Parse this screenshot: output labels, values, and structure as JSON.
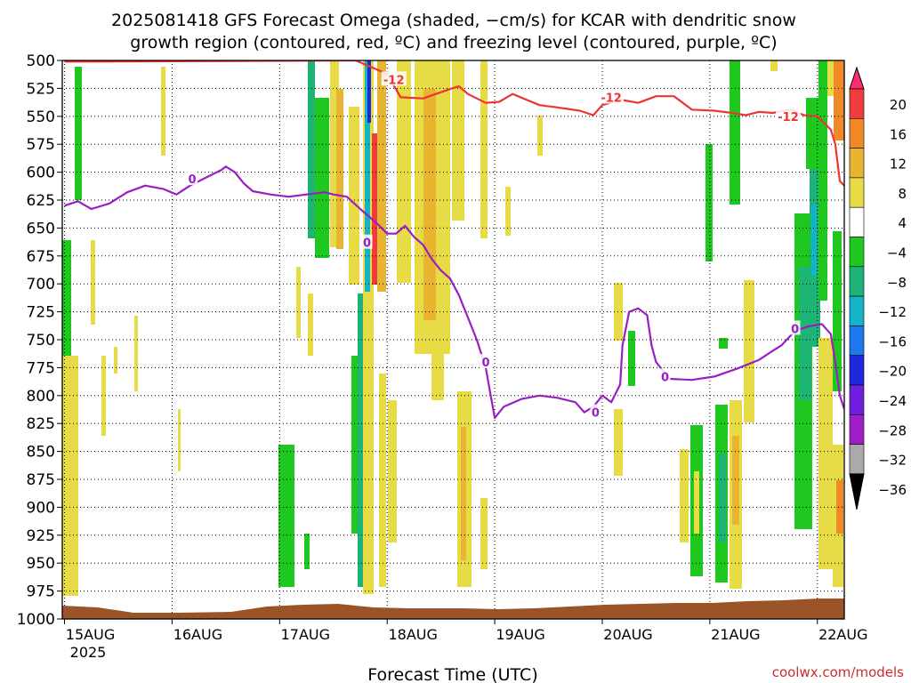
{
  "chart_data": {
    "type": "heatmap",
    "title_lines": [
      "2025081418 GFS Forecast Omega (shaded, −cm/s) for KCAR with dendritic snow",
      "growth region (contoured, red, ºC) and freezing level (contoured, purple, ºC)"
    ],
    "xlabel": "Forecast Time (UTC)",
    "credit": "coolwx.com/models",
    "y_axis": {
      "unit_note": "pressure (hPa), inverted",
      "ylim": [
        1000,
        500
      ],
      "ticks": [
        500,
        525,
        550,
        575,
        600,
        625,
        650,
        675,
        700,
        725,
        750,
        775,
        800,
        825,
        850,
        875,
        900,
        925,
        950,
        975,
        1000
      ]
    },
    "x_axis": {
      "ticks": [
        "15AUG",
        "16AUG",
        "17AUG",
        "18AUG",
        "19AUG",
        "20AUG",
        "21AUG",
        "22AUG"
      ],
      "tick_hours": [
        0,
        24,
        48,
        72,
        96,
        120,
        144,
        168
      ],
      "year_label": "2025",
      "xlim_hours": [
        -0.5,
        174
      ]
    },
    "colorbar": {
      "labels": [
        20,
        16,
        12,
        8,
        4,
        -4,
        -8,
        -12,
        -16,
        -20,
        -24,
        -28,
        -32,
        -36
      ],
      "colors": [
        "#ff2a6f",
        "#f03c3c",
        "#f08a28",
        "#e8b432",
        "#e8dc46",
        "#ffffff",
        "#1ec81e",
        "#1eb478",
        "#14b4c8",
        "#1e78f0",
        "#1e28dc",
        "#6e1edc",
        "#a01ec8",
        "#aaaaaa",
        "#000000"
      ]
    },
    "series": [
      {
        "name": "-12",
        "color": "#ee3333",
        "points": [
          [
            0,
            501
          ],
          [
            5,
            501
          ],
          [
            65,
            500
          ],
          [
            72,
            512
          ],
          [
            75,
            533
          ],
          [
            80,
            534
          ],
          [
            85,
            527
          ],
          [
            88,
            523
          ],
          [
            90,
            530
          ],
          [
            94,
            538
          ],
          [
            97,
            537
          ],
          [
            100,
            530
          ],
          [
            103,
            535
          ],
          [
            106,
            540
          ],
          [
            110,
            542
          ],
          [
            115,
            545
          ],
          [
            118,
            549
          ],
          [
            120,
            540
          ],
          [
            124,
            535
          ],
          [
            128,
            538
          ],
          [
            132,
            532
          ],
          [
            136,
            532
          ],
          [
            140,
            544
          ],
          [
            145,
            545
          ],
          [
            149,
            547
          ],
          [
            152,
            549
          ],
          [
            155,
            546
          ],
          [
            158,
            547
          ],
          [
            162,
            544
          ],
          [
            165,
            549
          ],
          [
            168,
            550
          ],
          [
            171,
            562
          ],
          [
            172,
            575
          ],
          [
            173,
            608
          ],
          [
            174,
            612
          ]
        ],
        "labels_at": [
          [
            73.5,
            517
          ],
          [
            122,
            533
          ],
          [
            161.5,
            550
          ]
        ]
      },
      {
        "name": "0",
        "color": "#9a1ec4",
        "points": [
          [
            0,
            630
          ],
          [
            3,
            626
          ],
          [
            6,
            633
          ],
          [
            10,
            628
          ],
          [
            14,
            618
          ],
          [
            18,
            612
          ],
          [
            22,
            615
          ],
          [
            25,
            620
          ],
          [
            28,
            612
          ],
          [
            32,
            604
          ],
          [
            35,
            598
          ],
          [
            36,
            595
          ],
          [
            38,
            600
          ],
          [
            40,
            610
          ],
          [
            42,
            617
          ],
          [
            46,
            620
          ],
          [
            50,
            622
          ],
          [
            54,
            620
          ],
          [
            58,
            618
          ],
          [
            60,
            620
          ],
          [
            63,
            622
          ],
          [
            66,
            633
          ],
          [
            68,
            640
          ],
          [
            70,
            647
          ],
          [
            72,
            655
          ],
          [
            74,
            655
          ],
          [
            76,
            648
          ],
          [
            78,
            658
          ],
          [
            80,
            665
          ],
          [
            82,
            678
          ],
          [
            84,
            688
          ],
          [
            86,
            695
          ],
          [
            88,
            710
          ],
          [
            90,
            730
          ],
          [
            92,
            750
          ],
          [
            94,
            775
          ],
          [
            96,
            820
          ],
          [
            98,
            810
          ],
          [
            102,
            803
          ],
          [
            106,
            800
          ],
          [
            110,
            802
          ],
          [
            114,
            806
          ],
          [
            116,
            815
          ],
          [
            118,
            810
          ],
          [
            120,
            800
          ],
          [
            122,
            806
          ],
          [
            124,
            790
          ],
          [
            124.5,
            755
          ],
          [
            126,
            725
          ],
          [
            128,
            722
          ],
          [
            130,
            728
          ],
          [
            131,
            755
          ],
          [
            132,
            770
          ],
          [
            135,
            785
          ],
          [
            140,
            786
          ],
          [
            145,
            783
          ],
          [
            150,
            776
          ],
          [
            155,
            768
          ],
          [
            158,
            760
          ],
          [
            160,
            755
          ],
          [
            163,
            742
          ],
          [
            166,
            738
          ],
          [
            169,
            736
          ],
          [
            171,
            745
          ],
          [
            172,
            770
          ],
          [
            173,
            800
          ],
          [
            174,
            812
          ]
        ],
        "labels_at": [
          [
            28.5,
            606
          ],
          [
            67.5,
            663
          ],
          [
            94,
            770
          ],
          [
            118.5,
            815
          ],
          [
            134,
            783
          ],
          [
            163,
            740
          ]
        ]
      }
    ]
  }
}
